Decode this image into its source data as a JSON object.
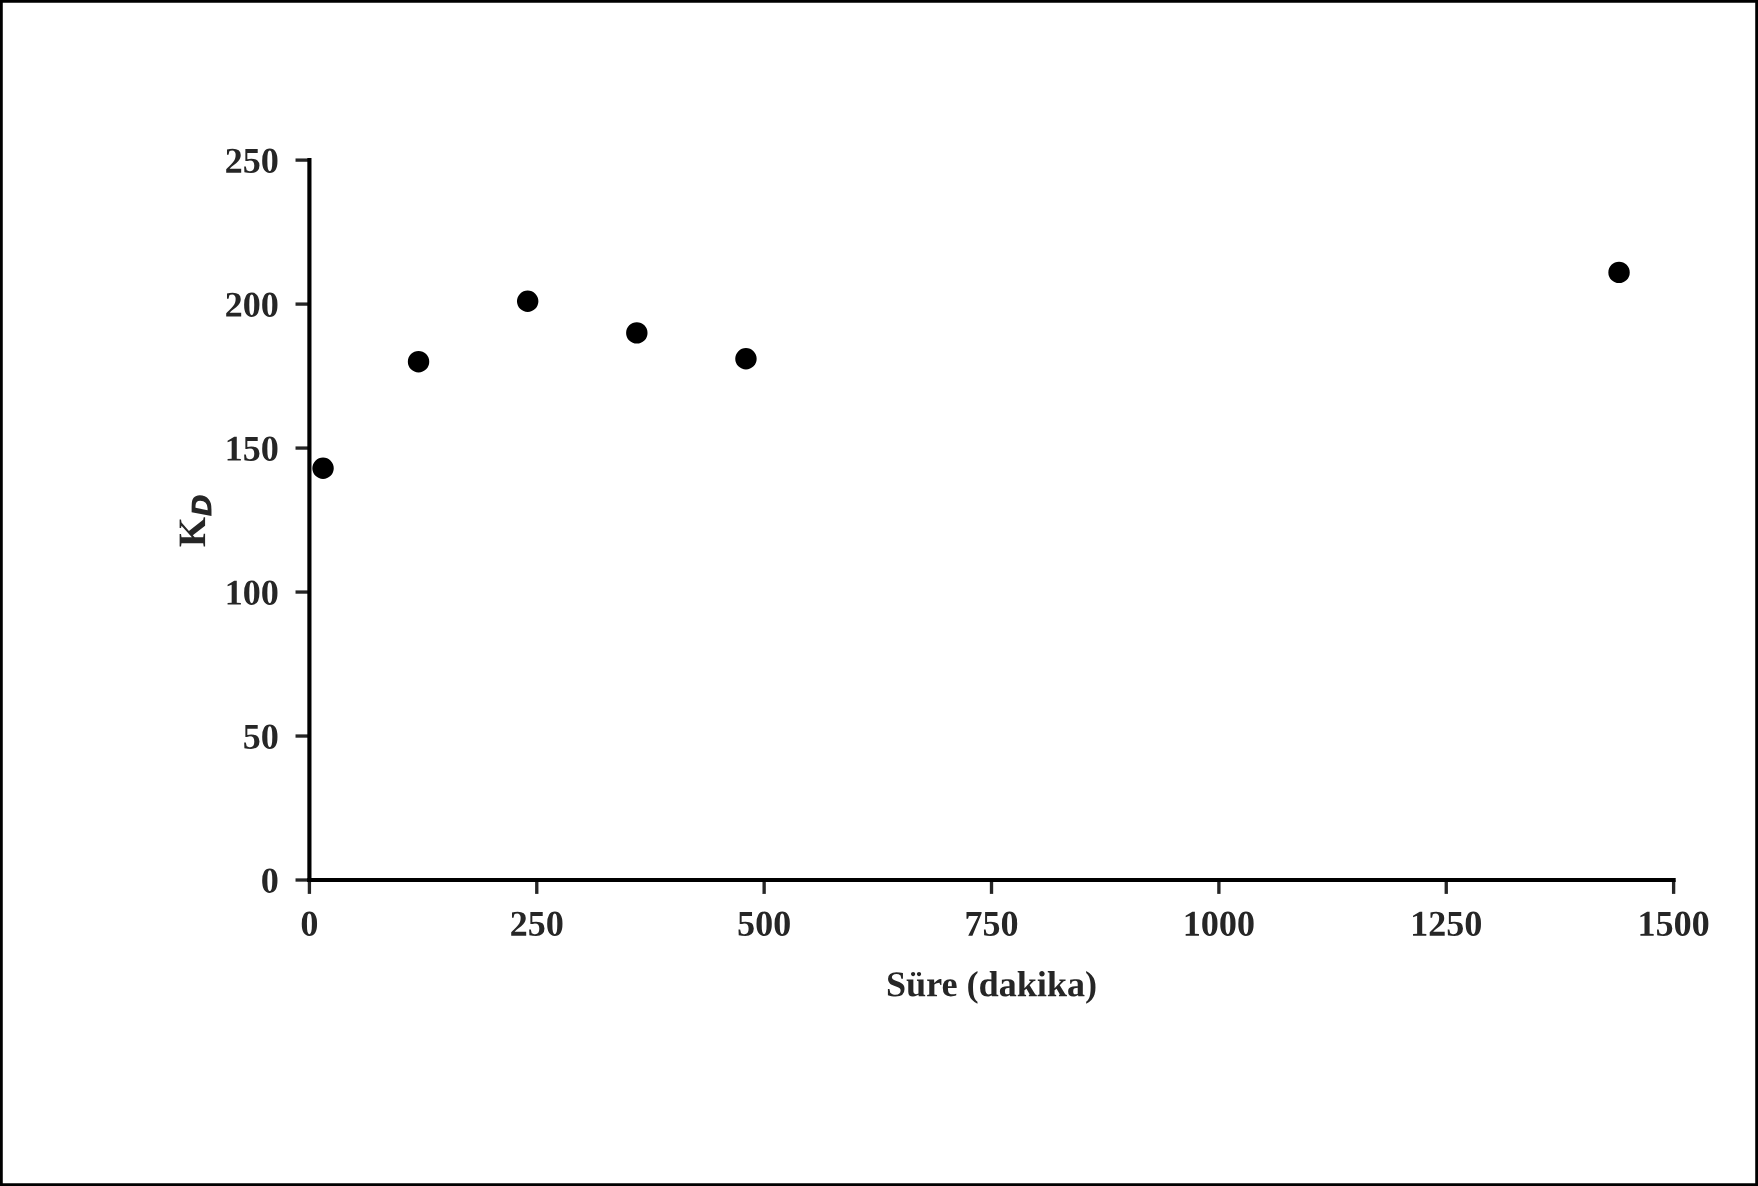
{
  "chart_data": {
    "type": "scatter",
    "xlabel": "Süre (dakika)",
    "ylabel": "K$_{D}$",
    "x": [
      15,
      120,
      240,
      360,
      480,
      1440
    ],
    "series": [
      {
        "color": "#000000",
        "values": [
          143,
          180,
          201,
          190,
          181,
          211
        ]
      }
    ],
    "xlim": [
      0,
      1500
    ],
    "xticks": [
      0,
      250,
      500,
      750,
      1000,
      1250,
      1500
    ],
    "ylim": [
      0,
      250
    ],
    "yticks": [
      0,
      50,
      100,
      150,
      200,
      250
    ],
    "marker": "circle",
    "grid": false,
    "legend": false
  }
}
